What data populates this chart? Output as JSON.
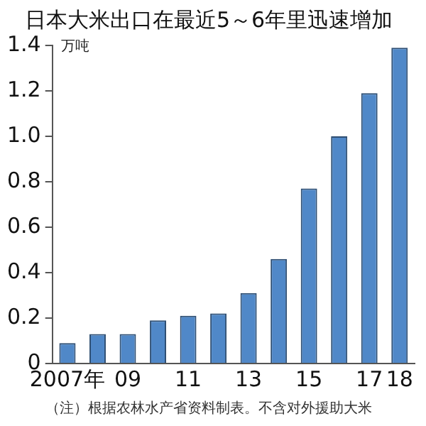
{
  "chart_data": {
    "type": "bar",
    "title": "日本大米出口在最近5～6年里迅速增加",
    "ylabel": "万吨",
    "categories": [
      "2007年",
      null,
      "09",
      null,
      "11",
      null,
      "13",
      null,
      "15",
      null,
      "17",
      "18"
    ],
    "values": [
      0.09,
      0.13,
      0.13,
      0.19,
      0.21,
      0.22,
      0.31,
      0.46,
      0.77,
      1.0,
      1.19,
      1.39
    ],
    "color": "#5088c8",
    "ylim": [
      0,
      1.4
    ],
    "yticks": [
      0,
      0.2,
      0.4,
      0.6,
      0.8,
      {
        "value": 1,
        "label": "1.0"
      },
      1.2,
      1.4
    ],
    "grid": false,
    "legend": false,
    "annotations": [
      "（注）根据农林水产省资料制表。不含对外援助大米"
    ]
  }
}
